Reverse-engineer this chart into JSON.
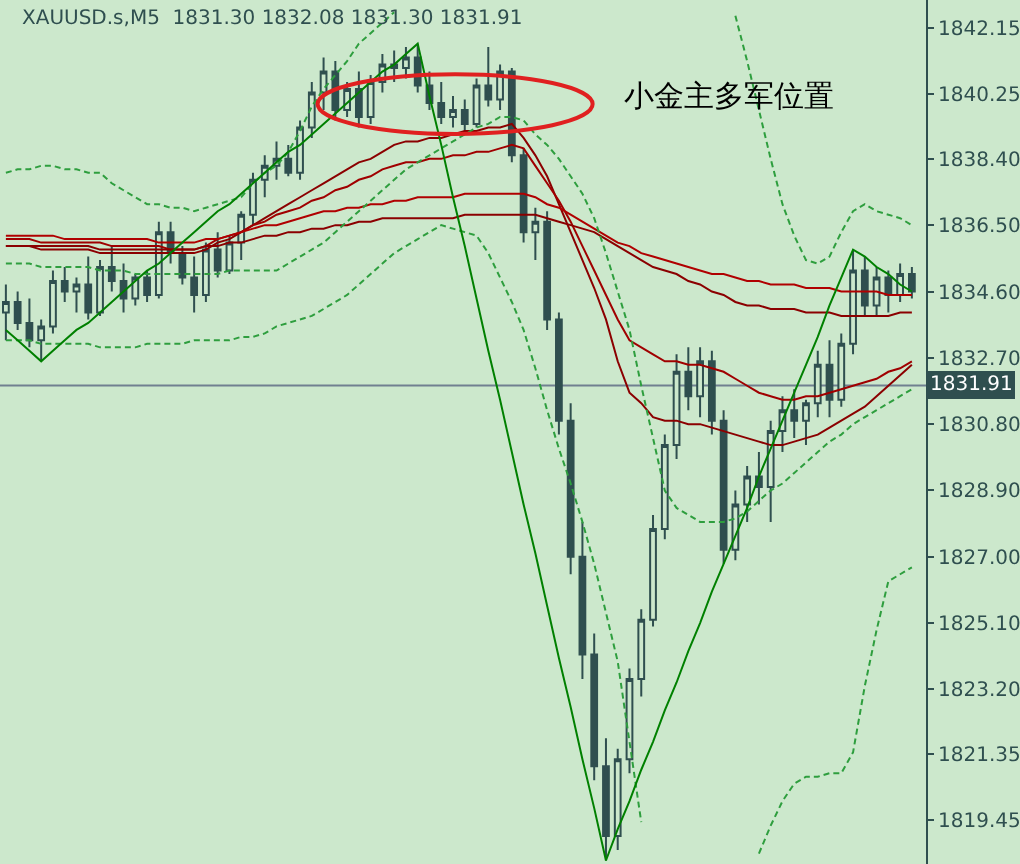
{
  "chart_data": {
    "type": "candlestick",
    "title": "XAUUSD.s,M5  1831.30 1832.08 1831.30 1831.91",
    "annotations": [
      "小金主多军位置"
    ],
    "categories": [
      null,
      null,
      null,
      null,
      null,
      null,
      null,
      null,
      null,
      null,
      null,
      null,
      null,
      null,
      null,
      null,
      null,
      null,
      null,
      null,
      null,
      null,
      null,
      null,
      null,
      null,
      null,
      null,
      null,
      null,
      null,
      null,
      null,
      null,
      null,
      null,
      null,
      null,
      null,
      null,
      null,
      null,
      null,
      null,
      null,
      null,
      null,
      null,
      null,
      null,
      null,
      null,
      null,
      null,
      null,
      null,
      null,
      null,
      null,
      null,
      null,
      null,
      null,
      null,
      null,
      null,
      null,
      null,
      null,
      null,
      null,
      null,
      null,
      null,
      null,
      null,
      null,
      null
    ],
    "color": "#2f4f4f",
    "ohlc": [
      [
        1834.0,
        1834.8,
        1833.2,
        1834.3
      ],
      [
        1834.3,
        1834.6,
        1833.5,
        1833.7
      ],
      [
        1833.7,
        1834.4,
        1833.0,
        1833.2
      ],
      [
        1833.2,
        1833.8,
        1832.6,
        1833.6
      ],
      [
        1833.6,
        1835.2,
        1833.4,
        1834.9
      ],
      [
        1834.9,
        1835.3,
        1834.3,
        1834.6
      ],
      [
        1834.6,
        1835.0,
        1834.0,
        1834.8
      ],
      [
        1834.8,
        1835.6,
        1833.8,
        1834.0
      ],
      [
        1834.0,
        1835.5,
        1833.9,
        1835.3
      ],
      [
        1835.3,
        1835.9,
        1834.6,
        1834.9
      ],
      [
        1834.9,
        1835.4,
        1834.0,
        1834.4
      ],
      [
        1834.4,
        1835.1,
        1834.2,
        1835.0
      ],
      [
        1835.0,
        1835.2,
        1834.3,
        1834.5
      ],
      [
        1834.5,
        1836.6,
        1834.4,
        1836.3
      ],
      [
        1836.3,
        1836.6,
        1835.4,
        1835.7
      ],
      [
        1835.7,
        1835.9,
        1834.8,
        1835.0
      ],
      [
        1835.0,
        1835.6,
        1834.0,
        1834.5
      ],
      [
        1834.5,
        1836.0,
        1834.3,
        1835.8
      ],
      [
        1835.8,
        1836.3,
        1835.0,
        1835.2
      ],
      [
        1835.2,
        1836.2,
        1835.1,
        1836.0
      ],
      [
        1836.0,
        1836.9,
        1835.5,
        1836.8
      ],
      [
        1836.8,
        1838.0,
        1836.5,
        1837.8
      ],
      [
        1837.8,
        1838.5,
        1837.3,
        1838.2
      ],
      [
        1838.2,
        1838.9,
        1837.8,
        1838.4
      ],
      [
        1838.4,
        1838.8,
        1837.9,
        1838.0
      ],
      [
        1838.0,
        1839.5,
        1837.8,
        1839.3
      ],
      [
        1839.3,
        1840.6,
        1839.0,
        1840.3
      ],
      [
        1840.3,
        1841.3,
        1839.8,
        1840.9
      ],
      [
        1840.9,
        1841.2,
        1839.5,
        1839.8
      ],
      [
        1839.8,
        1840.6,
        1839.6,
        1840.4
      ],
      [
        1840.4,
        1840.9,
        1839.3,
        1839.6
      ],
      [
        1839.6,
        1840.8,
        1839.4,
        1840.6
      ],
      [
        1840.6,
        1841.4,
        1840.3,
        1841.1
      ],
      [
        1841.1,
        1841.5,
        1840.6,
        1841.0
      ],
      [
        1841.0,
        1841.6,
        1840.7,
        1841.3
      ],
      [
        1841.3,
        1841.7,
        1840.3,
        1840.5
      ],
      [
        1840.5,
        1840.9,
        1839.8,
        1840.0
      ],
      [
        1840.0,
        1840.6,
        1839.4,
        1839.6
      ],
      [
        1839.6,
        1840.2,
        1839.3,
        1839.8
      ],
      [
        1839.8,
        1840.1,
        1839.2,
        1839.4
      ],
      [
        1839.4,
        1840.7,
        1839.3,
        1840.5
      ],
      [
        1840.5,
        1841.6,
        1839.9,
        1840.1
      ],
      [
        1840.1,
        1841.1,
        1839.8,
        1840.9
      ],
      [
        1840.9,
        1841.0,
        1838.3,
        1838.5
      ],
      [
        1838.5,
        1838.7,
        1836.0,
        1836.3
      ],
      [
        1836.3,
        1837.0,
        1835.5,
        1836.6
      ],
      [
        1836.6,
        1836.9,
        1833.5,
        1833.8
      ],
      [
        1833.8,
        1834.0,
        1830.5,
        1830.9
      ],
      [
        1830.9,
        1831.4,
        1826.5,
        1827.0
      ],
      [
        1827.0,
        1828.0,
        1823.5,
        1824.2
      ],
      [
        1824.2,
        1824.8,
        1820.6,
        1821.0
      ],
      [
        1821.0,
        1821.8,
        1818.3,
        1819.0
      ],
      [
        1819.0,
        1821.5,
        1818.6,
        1821.2
      ],
      [
        1821.2,
        1823.8,
        1820.8,
        1823.5
      ],
      [
        1823.5,
        1825.5,
        1823.0,
        1825.2
      ],
      [
        1825.2,
        1828.2,
        1825.0,
        1827.8
      ],
      [
        1827.8,
        1830.5,
        1827.5,
        1830.2
      ],
      [
        1830.2,
        1832.8,
        1829.8,
        1832.3
      ],
      [
        1832.3,
        1833.0,
        1831.2,
        1831.6
      ],
      [
        1831.6,
        1833.0,
        1831.0,
        1832.6
      ],
      [
        1832.6,
        1832.9,
        1830.5,
        1830.9
      ],
      [
        1830.9,
        1831.2,
        1826.8,
        1827.2
      ],
      [
        1827.2,
        1828.9,
        1826.9,
        1828.5
      ],
      [
        1828.5,
        1829.6,
        1828.0,
        1829.3
      ],
      [
        1829.3,
        1830.0,
        1828.5,
        1829.0
      ],
      [
        1829.0,
        1830.9,
        1828.0,
        1830.6
      ],
      [
        1830.6,
        1831.6,
        1830.0,
        1831.2
      ],
      [
        1831.2,
        1831.8,
        1830.4,
        1830.9
      ],
      [
        1830.9,
        1831.5,
        1830.2,
        1831.4
      ],
      [
        1831.4,
        1832.9,
        1831.0,
        1832.5
      ],
      [
        1832.5,
        1833.2,
        1831.0,
        1831.5
      ],
      [
        1831.5,
        1833.4,
        1831.3,
        1833.1
      ],
      [
        1833.1,
        1835.8,
        1832.8,
        1835.2
      ],
      [
        1835.2,
        1835.6,
        1833.9,
        1834.2
      ],
      [
        1834.2,
        1835.3,
        1833.9,
        1835.0
      ],
      [
        1835.0,
        1835.2,
        1834.0,
        1834.5
      ],
      [
        1834.5,
        1835.4,
        1834.3,
        1835.1
      ],
      [
        1835.1,
        1835.3,
        1834.4,
        1834.6
      ]
    ],
    "series": [
      {
        "type": "line",
        "color": "#8b0000",
        "line_style": "solid",
        "values": [
          1835.9,
          1835.9,
          1835.9,
          1835.8,
          1835.8,
          1835.8,
          1835.8,
          1835.8,
          1835.7,
          1835.7,
          1835.7,
          1835.7,
          1835.7,
          1835.7,
          1835.7,
          1835.7,
          1835.7,
          1835.8,
          1836.0,
          1836.1,
          1836.3,
          1836.5,
          1836.7,
          1836.9,
          1837.1,
          1837.3,
          1837.5,
          1837.7,
          1837.9,
          1838.1,
          1838.3,
          1838.4,
          1838.6,
          1838.8,
          1838.9,
          1838.9,
          1839.0,
          1839.0,
          1839.1,
          1839.2,
          1839.2,
          1839.3,
          1839.3,
          1839.4,
          1839.0,
          1838.5,
          1837.9,
          1837.1,
          1836.3,
          1835.5,
          1834.7,
          1833.8,
          1832.6,
          1831.7,
          1831.4,
          1831.0,
          1830.9,
          1830.9,
          1830.8,
          1830.8,
          1830.7,
          1830.6,
          1830.5,
          1830.4,
          1830.3,
          1830.2,
          1830.2,
          1830.3,
          1830.4,
          1830.5,
          1830.7,
          1830.9,
          1831.1,
          1831.3,
          1831.6,
          1831.9,
          1832.2,
          1832.5
        ]
      },
      {
        "type": "line",
        "color": "#a00000",
        "line_style": "solid",
        "values": [
          1836.1,
          1836.1,
          1836.1,
          1836.0,
          1836.0,
          1836.0,
          1836.0,
          1836.0,
          1836.0,
          1835.9,
          1835.9,
          1835.9,
          1835.9,
          1835.9,
          1835.8,
          1835.8,
          1835.8,
          1835.9,
          1836.1,
          1836.2,
          1836.3,
          1836.5,
          1836.6,
          1836.8,
          1836.9,
          1837.0,
          1837.2,
          1837.3,
          1837.5,
          1837.6,
          1837.8,
          1837.9,
          1838.1,
          1838.2,
          1838.3,
          1838.3,
          1838.4,
          1838.4,
          1838.5,
          1838.5,
          1838.6,
          1838.6,
          1838.7,
          1838.8,
          1838.7,
          1838.2,
          1837.7,
          1837.2,
          1836.6,
          1835.9,
          1835.2,
          1834.5,
          1833.8,
          1833.2,
          1833.0,
          1832.8,
          1832.6,
          1832.6,
          1832.5,
          1832.5,
          1832.4,
          1832.3,
          1832.1,
          1831.9,
          1831.7,
          1831.6,
          1831.5,
          1831.5,
          1831.6,
          1831.6,
          1831.7,
          1831.8,
          1831.9,
          1832.0,
          1832.1,
          1832.3,
          1832.4,
          1832.6
        ]
      },
      {
        "type": "line",
        "color": "#b00000",
        "line_style": "solid",
        "values": [
          1836.2,
          1836.2,
          1836.2,
          1836.2,
          1836.2,
          1836.1,
          1836.1,
          1836.1,
          1836.1,
          1836.1,
          1836.1,
          1836.1,
          1836.1,
          1836.0,
          1836.0,
          1836.0,
          1836.0,
          1836.1,
          1836.1,
          1836.2,
          1836.3,
          1836.4,
          1836.5,
          1836.5,
          1836.6,
          1836.7,
          1836.8,
          1836.9,
          1836.9,
          1837.0,
          1837.0,
          1837.1,
          1837.1,
          1837.2,
          1837.2,
          1837.3,
          1837.3,
          1837.3,
          1837.3,
          1837.4,
          1837.4,
          1837.4,
          1837.4,
          1837.4,
          1837.4,
          1837.3,
          1837.1,
          1837.0,
          1836.8,
          1836.6,
          1836.4,
          1836.2,
          1836.0,
          1835.9,
          1835.7,
          1835.6,
          1835.5,
          1835.4,
          1835.3,
          1835.2,
          1835.1,
          1835.1,
          1835.0,
          1834.9,
          1834.9,
          1834.8,
          1834.8,
          1834.8,
          1834.7,
          1834.7,
          1834.7,
          1834.6,
          1834.6,
          1834.6,
          1834.6,
          1834.5,
          1834.5,
          1834.5
        ]
      },
      {
        "type": "line",
        "color": "#8b0000",
        "line_style": "solid",
        "values": [
          1835.9,
          1835.9,
          1835.9,
          1835.9,
          1835.9,
          1835.9,
          1835.9,
          1835.9,
          1835.8,
          1835.8,
          1835.8,
          1835.8,
          1835.8,
          1835.8,
          1835.8,
          1835.8,
          1835.8,
          1835.9,
          1835.9,
          1836.0,
          1836.0,
          1836.1,
          1836.2,
          1836.2,
          1836.3,
          1836.3,
          1836.4,
          1836.4,
          1836.5,
          1836.5,
          1836.6,
          1836.6,
          1836.7,
          1836.7,
          1836.7,
          1836.7,
          1836.7,
          1836.7,
          1836.7,
          1836.8,
          1836.8,
          1836.8,
          1836.8,
          1836.8,
          1836.8,
          1836.8,
          1836.7,
          1836.6,
          1836.5,
          1836.4,
          1836.3,
          1836.1,
          1835.9,
          1835.7,
          1835.5,
          1835.3,
          1835.2,
          1835.1,
          1834.9,
          1834.8,
          1834.6,
          1834.5,
          1834.3,
          1834.2,
          1834.2,
          1834.1,
          1834.1,
          1834.1,
          1834.0,
          1834.0,
          1834.0,
          1833.9,
          1833.9,
          1833.9,
          1833.9,
          1833.9,
          1834.0,
          1834.0
        ]
      },
      {
        "type": "line",
        "color": "#2e9e3e",
        "line_style": "dashed",
        "values": [
          1838.0,
          1838.1,
          1838.1,
          1838.2,
          1838.2,
          1838.1,
          1838.1,
          1838.0,
          1838.0,
          1837.7,
          1837.5,
          1837.3,
          1837.1,
          1837.1,
          1837.0,
          1837.0,
          1836.9,
          1837.0,
          1837.1,
          1837.2,
          1837.3,
          1837.7,
          1838.0,
          1838.2,
          1838.6,
          1839.2,
          1839.9,
          1840.4,
          1840.8,
          1841.2,
          1841.7,
          1842.0,
          1842.3,
          1842.6,
          null,
          null,
          null,
          null,
          null,
          null,
          null,
          null,
          null,
          null,
          null,
          null,
          null,
          null,
          null,
          null,
          null,
          null,
          null,
          null,
          null,
          null,
          null,
          null,
          null,
          null,
          null,
          null,
          1842.5,
          1841.2,
          1839.8,
          1838.4,
          1837.1,
          1836.2,
          1835.5,
          1835.4,
          1835.6,
          1836.3,
          1836.9,
          1837.1,
          1836.9,
          1836.8,
          1836.7,
          1836.5
        ]
      },
      {
        "type": "line",
        "color": "#2e9e3e",
        "line_style": "dashed",
        "values": [
          1835.4,
          1835.4,
          1835.4,
          1835.3,
          1835.3,
          1835.3,
          1835.3,
          1835.3,
          1835.2,
          1835.2,
          1835.2,
          1835.1,
          1835.1,
          1835.1,
          1835.1,
          1835.1,
          1835.1,
          1835.1,
          1835.1,
          1835.2,
          1835.2,
          1835.2,
          1835.2,
          1835.2,
          1835.4,
          1835.6,
          1835.8,
          1836.0,
          1836.3,
          1836.6,
          1836.9,
          1837.2,
          1837.5,
          1837.8,
          1838.1,
          1838.3,
          1838.5,
          1838.7,
          1838.9,
          1839.1,
          1839.3,
          1839.4,
          1839.6,
          1839.6,
          1839.5,
          1839.1,
          1838.8,
          1838.4,
          1837.9,
          1837.4,
          1836.7,
          1835.7,
          1834.6,
          1833.5,
          1831.9,
          1830.4,
          1828.9,
          1828.4,
          1828.2,
          1828.0,
          1828.0,
          1828.0,
          1828.1,
          1828.3,
          1828.6,
          1828.9,
          1829.1,
          1829.4,
          1829.7,
          1830.0,
          1830.3,
          1830.5,
          1830.8,
          1831.0,
          1831.2,
          1831.4,
          1831.6,
          1831.8
        ]
      },
      {
        "type": "line",
        "color": "#2e9e3e",
        "line_style": "dashed",
        "values": [
          1833.2,
          1833.2,
          1833.2,
          1833.1,
          1833.1,
          1833.1,
          1833.1,
          1833.1,
          1833.0,
          1833.0,
          1833.0,
          1833.0,
          1833.1,
          1833.1,
          1833.1,
          1833.1,
          1833.2,
          1833.2,
          1833.2,
          1833.2,
          1833.3,
          1833.3,
          1833.4,
          1833.6,
          1833.7,
          1833.8,
          1833.9,
          1834.1,
          1834.3,
          1834.5,
          1834.8,
          1835.1,
          1835.4,
          1835.7,
          1835.9,
          1836.1,
          1836.3,
          1836.5,
          1836.4,
          1836.3,
          1836.2,
          1835.7,
          1835.0,
          1834.3,
          1833.5,
          1832.4,
          1831.2,
          1830.1,
          1829.1,
          1828.0,
          1826.8,
          1825.4,
          1824.0,
          1821.7,
          1819.4,
          null,
          null,
          null,
          null,
          null,
          null,
          null,
          null,
          null,
          1818.5,
          1819.3,
          1820.0,
          1820.5,
          1820.7,
          1820.7,
          1820.8,
          1820.8,
          1821.4,
          1823.3,
          1824.9,
          1826.3,
          1826.5,
          1826.7
        ]
      },
      {
        "type": "line",
        "color": "#008000",
        "line_style": "solid",
        "values": [
          1833.5,
          1833.2,
          1832.9,
          1832.6,
          1832.9,
          1833.2,
          1833.5,
          1833.7,
          1834.0,
          1834.3,
          1834.6,
          1834.9,
          1835.2,
          1835.4,
          1835.7,
          1836.0,
          1836.3,
          1836.6,
          1836.9,
          1837.1,
          1837.4,
          1837.7,
          1838.0,
          1838.3,
          1838.6,
          1838.8,
          1839.1,
          1839.4,
          1839.7,
          1840.0,
          1840.3,
          1840.6,
          1840.9,
          1841.1,
          1841.4,
          1841.7,
          1840.2,
          1838.8,
          1837.3,
          1835.9,
          1834.4,
          1832.9,
          1831.5,
          1830.0,
          1828.5,
          1827.1,
          1825.6,
          1824.1,
          1822.7,
          1821.2,
          1819.8,
          1818.3,
          1819.2,
          1820.0,
          1820.9,
          1821.7,
          1822.6,
          1823.4,
          1824.3,
          1825.1,
          1826.0,
          1826.8,
          1827.6,
          1828.4,
          1829.3,
          1830.1,
          1830.9,
          1831.7,
          1832.5,
          1833.3,
          1834.2,
          1835.0,
          1835.8,
          1835.6,
          1835.3,
          1835.1,
          1834.8,
          1834.6
        ]
      }
    ],
    "ref_lines": [
      {
        "axis": "y",
        "value": 1831.91,
        "label": "1831.91",
        "color": "#708090"
      }
    ],
    "ylim": [
      1818.2,
      1842.95
    ],
    "yticks": [
      {
        "value": 1842.15,
        "label": "1842.15"
      },
      {
        "value": 1840.25,
        "label": "1840.25"
      },
      {
        "value": 1838.4,
        "label": "1838.40"
      },
      {
        "value": 1836.5,
        "label": "1836.50"
      },
      {
        "value": 1834.6,
        "label": "1834.60"
      },
      {
        "value": 1832.7,
        "label": "1832.70"
      },
      {
        "value": 1830.8,
        "label": "1830.80"
      },
      {
        "value": 1828.9,
        "label": "1828.90"
      },
      {
        "value": 1827.0,
        "label": "1827.00"
      },
      {
        "value": 1825.1,
        "label": "1825.10"
      },
      {
        "value": 1823.2,
        "label": "1823.20"
      },
      {
        "value": 1821.35,
        "label": "1821.35"
      },
      {
        "value": 1819.45,
        "label": "1819.45"
      }
    ],
    "tick_labels": "y",
    "grid": false
  }
}
